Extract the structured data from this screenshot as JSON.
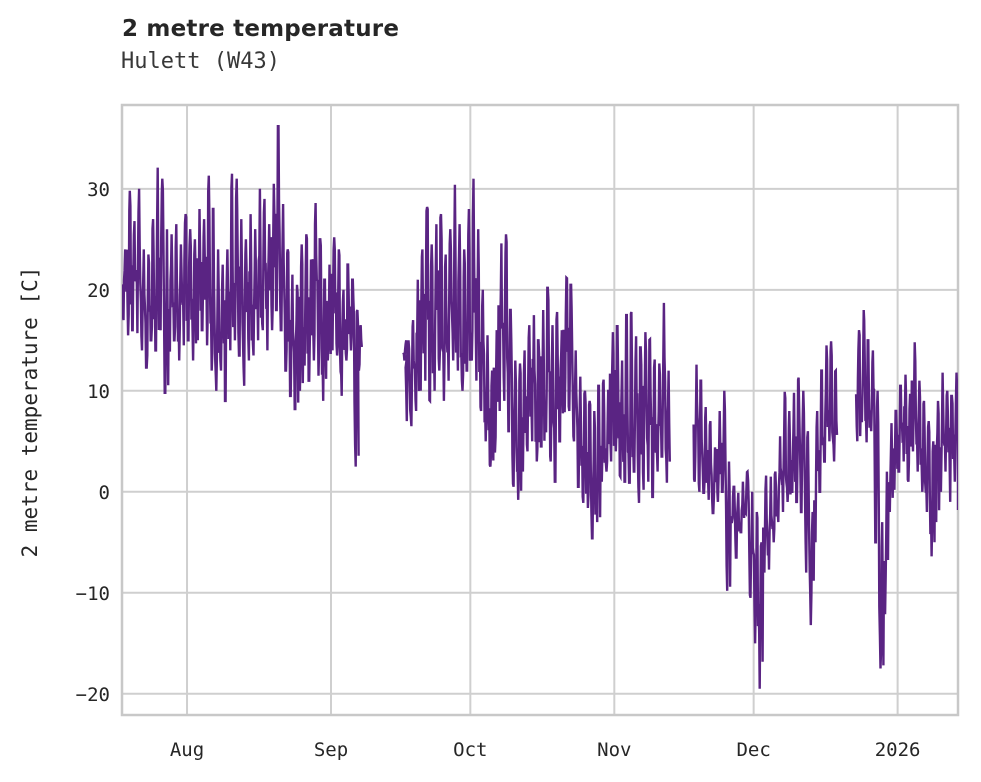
{
  "chart_data": {
    "type": "line",
    "title": "2 metre temperature",
    "subtitle": "Hulett (W43)",
    "ylabel": "2 metre temperature [C]",
    "xlabel": "",
    "legend": "none",
    "grid": true,
    "line_color": "#5a2483",
    "grid_color": "#cfcfcf",
    "border_color": "#c8c8c8",
    "text_color": "#262626",
    "background_color": "#ffffff",
    "ylim": [
      -22.1,
      38.3
    ],
    "yticks": [
      {
        "value": 30,
        "label": "30"
      },
      {
        "value": 20,
        "label": "20"
      },
      {
        "value": 10,
        "label": "10"
      },
      {
        "value": 0,
        "label": "0"
      },
      {
        "value": -10,
        "label": "-10"
      },
      {
        "value": -20,
        "label": "-20"
      }
    ],
    "x_days_range": [
      0,
      180
    ],
    "xticks": [
      {
        "day": 14,
        "label": "Aug"
      },
      {
        "day": 45,
        "label": "Sep"
      },
      {
        "day": 75,
        "label": "Oct"
      },
      {
        "day": 106,
        "label": "Nov"
      },
      {
        "day": 136,
        "label": "Dec"
      },
      {
        "day": 167,
        "label": "2026"
      }
    ],
    "series": [
      {
        "name": "2 metre temperature",
        "unit": "C",
        "note": "daily [day,min,max] envelopes of noisy sub-daily trace; gaps between segments are data gaps visible in the plot",
        "segments": [
          {
            "daily": [
              [
                0,
                17,
                24
              ],
              [
                1,
                15.5,
                29.8
              ],
              [
                2,
                16,
                26.8
              ],
              [
                3,
                15.7,
                30
              ],
              [
                4,
                14,
                24
              ],
              [
                5,
                12.3,
                23.5
              ],
              [
                6,
                15,
                27
              ],
              [
                7,
                14,
                32.1
              ],
              [
                8,
                16,
                31
              ],
              [
                9,
                9.8,
                26
              ],
              [
                10,
                14,
                25.5
              ],
              [
                11,
                15,
                26.5
              ],
              [
                12,
                13,
                24.5
              ],
              [
                13,
                14.5,
                27.5
              ],
              [
                14,
                15,
                26
              ],
              [
                15,
                13,
                25
              ],
              [
                16,
                15,
                28
              ],
              [
                17,
                16,
                27
              ],
              [
                18,
                14.5,
                31.3
              ],
              [
                19,
                12,
                28
              ],
              [
                20,
                10,
                24
              ],
              [
                21,
                12,
                22.5
              ],
              [
                22,
                9,
                24
              ],
              [
                23,
                14,
                31.5
              ],
              [
                24,
                15,
                31
              ],
              [
                25,
                13.5,
                27
              ],
              [
                26,
                10.5,
                25
              ],
              [
                27,
                13,
                27.5
              ],
              [
                28,
                13.5,
                26
              ],
              [
                29,
                15,
                30
              ],
              [
                30,
                16,
                29
              ],
              [
                31,
                14,
                26.5
              ],
              [
                32,
                16,
                30.5
              ],
              [
                33,
                18,
                36.2
              ],
              [
                34,
                16,
                28.5
              ],
              [
                35,
                12,
                24
              ],
              [
                36,
                9.5,
                21.5
              ],
              [
                37,
                8.2,
                20.5
              ],
              [
                38,
                10,
                24.5
              ],
              [
                39,
                12.5,
                25.5
              ],
              [
                40,
                11,
                23
              ],
              [
                41,
                13,
                28.6
              ],
              [
                42,
                11.5,
                25
              ],
              [
                43,
                9,
                21
              ],
              [
                44,
                13,
                22.5
              ],
              [
                45,
                14,
                25.2
              ],
              [
                46,
                13.5,
                24
              ],
              [
                47,
                9.5,
                20
              ],
              [
                48,
                13,
                22.5
              ],
              [
                49,
                14,
                21
              ],
              [
                50,
                2.5,
                18
              ],
              [
                50.7,
                12,
                16.5
              ]
            ]
          },
          {
            "daily": [
              [
                60.5,
                13,
                15
              ],
              [
                61,
                7,
                15
              ],
              [
                62,
                6.5,
                17
              ],
              [
                63,
                8,
                21
              ],
              [
                64,
                10,
                24
              ],
              [
                65,
                11,
                28.2
              ],
              [
                66,
                9,
                24.5
              ],
              [
                67,
                10,
                26.5
              ],
              [
                68,
                12,
                27.5
              ],
              [
                69,
                9,
                23.5
              ],
              [
                70,
                11,
                26
              ],
              [
                71,
                13,
                30.4
              ],
              [
                72,
                12,
                26.5
              ],
              [
                73,
                10,
                24
              ],
              [
                74,
                12,
                28
              ],
              [
                75,
                13,
                31
              ],
              [
                76,
                11,
                26
              ],
              [
                77,
                8,
                20
              ],
              [
                78,
                5,
                15.5
              ],
              [
                79,
                2.5,
                12
              ],
              [
                80,
                4,
                16
              ],
              [
                81,
                8,
                24.6
              ],
              [
                82,
                9,
                25.5
              ],
              [
                83,
                6,
                18
              ],
              [
                84,
                0.5,
                13
              ],
              [
                85,
                -0.8,
                12.7
              ],
              [
                86,
                2,
                14
              ],
              [
                87,
                4,
                16.5
              ],
              [
                88,
                5,
                17.5
              ],
              [
                89,
                3,
                15
              ],
              [
                90,
                4.5,
                18
              ],
              [
                91,
                6,
                20.2
              ],
              [
                92,
                3,
                16.5
              ],
              [
                93,
                1,
                17.8
              ],
              [
                94,
                5,
                16
              ],
              [
                95,
                8,
                21.2
              ],
              [
                96,
                8,
                20.5
              ],
              [
                97,
                5,
                14
              ],
              [
                98,
                0.5,
                11.4
              ],
              [
                99,
                -1.1,
                10
              ],
              [
                100,
                -1.6,
                9
              ],
              [
                101,
                -4.6,
                8
              ],
              [
                102,
                -3,
                10.5
              ],
              [
                103,
                1,
                11.1
              ],
              [
                104,
                2,
                10.1
              ],
              [
                105,
                3,
                15.8
              ],
              [
                106,
                4,
                16.4
              ],
              [
                107,
                1.5,
                13
              ],
              [
                108,
                1,
                17.5
              ],
              [
                109,
                0.9,
                17.8
              ],
              [
                110,
                2,
                15.4
              ],
              [
                111,
                -1.1,
                14.3
              ],
              [
                112,
                0.2,
                15.8
              ],
              [
                113,
                1,
                15.1
              ],
              [
                114,
                -0.5,
                13.1
              ],
              [
                115,
                2,
                12.7
              ],
              [
                116,
                3.5,
                18.7
              ],
              [
                117,
                0.9,
                12
              ]
            ]
          },
          {
            "daily": [
              [
                123,
                1,
                12.6
              ],
              [
                124,
                0,
                11
              ],
              [
                125,
                -0.1,
                8.4
              ],
              [
                126,
                -0.8,
                7
              ],
              [
                127,
                -2.1,
                4.4
              ],
              [
                128,
                -1,
                8
              ],
              [
                129,
                0,
                10
              ],
              [
                130,
                -9.8,
                3
              ],
              [
                131,
                -3,
                0.5
              ],
              [
                132,
                -6.5,
                -0.1
              ],
              [
                133,
                -4,
                1
              ],
              [
                134,
                -2.1,
                2
              ],
              [
                135,
                -10.5,
                0
              ],
              [
                136,
                -15,
                -2
              ],
              [
                137,
                -19.5,
                -5
              ],
              [
                138,
                -8,
                1.6
              ],
              [
                139,
                -7.7,
                1.5
              ],
              [
                140,
                -5,
                2
              ],
              [
                141,
                -3,
                5.5
              ],
              [
                142,
                -2,
                9.9
              ],
              [
                143,
                -1,
                8
              ],
              [
                144,
                0,
                9.8
              ],
              [
                145,
                -1,
                11.3
              ],
              [
                146,
                -2,
                10
              ],
              [
                147,
                -8,
                6
              ],
              [
                148,
                -13.2,
                -2
              ],
              [
                149,
                -5,
                8
              ],
              [
                150,
                0,
                12
              ],
              [
                151,
                3,
                14.5
              ],
              [
                152,
                5,
                14.9
              ],
              [
                153,
                3,
                12
              ]
            ]
          },
          {
            "daily": [
              [
                158,
                5,
                16
              ],
              [
                159,
                7,
                18
              ],
              [
                160,
                4.9,
                15
              ],
              [
                161,
                6,
                14
              ],
              [
                162,
                -5,
                10
              ],
              [
                163,
                -17.5,
                -3
              ],
              [
                164,
                -12,
                2
              ],
              [
                165,
                -2,
                6.8
              ],
              [
                166,
                0.2,
                8
              ],
              [
                167,
                2,
                10.5
              ],
              [
                168,
                3,
                11.6
              ],
              [
                169,
                1,
                9.7
              ],
              [
                170,
                4,
                14.8
              ],
              [
                171,
                2,
                11
              ],
              [
                172,
                0,
                9
              ],
              [
                173,
                -2,
                7
              ],
              [
                174,
                -6.4,
                5
              ],
              [
                175,
                -3,
                9
              ],
              [
                176,
                0,
                11.8
              ],
              [
                177,
                2,
                10
              ],
              [
                178,
                -1,
                9.5
              ],
              [
                179,
                1,
                11.8
              ],
              [
                180,
                -1.8,
                9
              ]
            ]
          }
        ]
      }
    ]
  }
}
